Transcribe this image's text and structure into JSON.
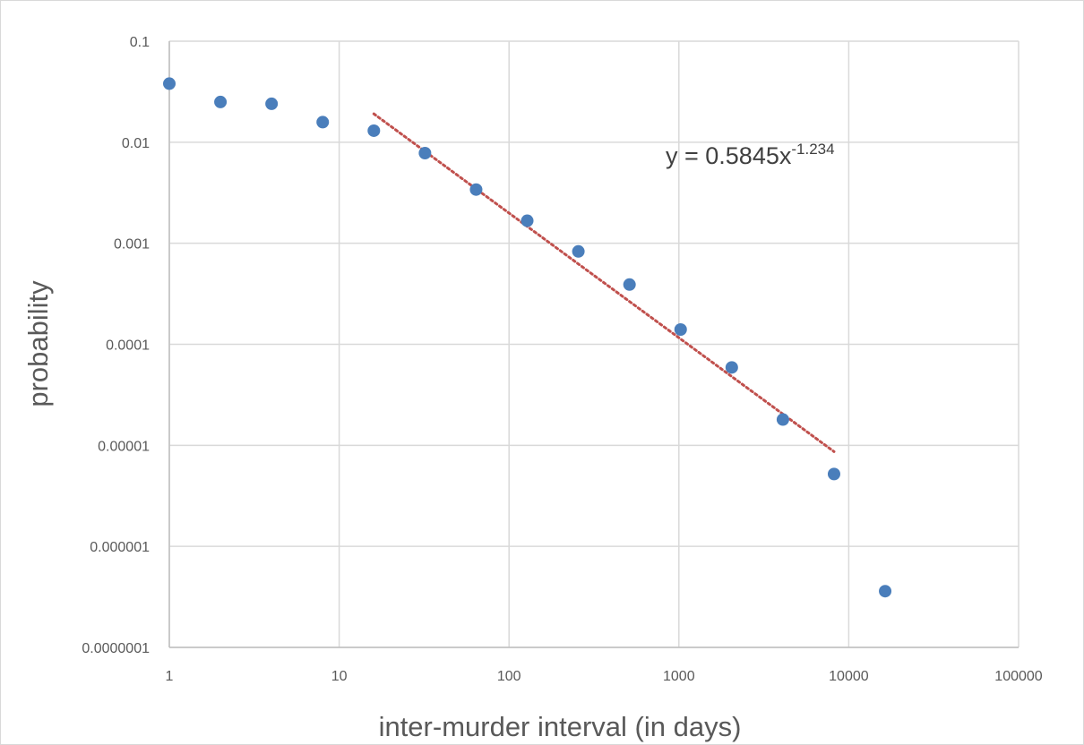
{
  "chart_data": {
    "type": "scatter",
    "title": "",
    "xlabel": "inter-murder interval (in days)",
    "ylabel": "probability",
    "x_scale": "log10",
    "y_scale": "log10",
    "xlim": [
      1,
      100000
    ],
    "ylim": [
      1e-07,
      0.1
    ],
    "x_ticks": [
      "1",
      "10",
      "100",
      "1000",
      "10000",
      "100000"
    ],
    "y_ticks": [
      "0.0000001",
      "0.000001",
      "0.00001",
      "0.0001",
      "0.001",
      "0.01",
      "0.1"
    ],
    "grid": true,
    "legend": "none",
    "series": [
      {
        "color": "#4a7ebb",
        "points": [
          {
            "x": 1,
            "y": 0.038
          },
          {
            "x": 2,
            "y": 0.025
          },
          {
            "x": 4,
            "y": 0.024
          },
          {
            "x": 8,
            "y": 0.0158
          },
          {
            "x": 16,
            "y": 0.013
          },
          {
            "x": 32,
            "y": 0.0078
          },
          {
            "x": 64,
            "y": 0.0034
          },
          {
            "x": 128,
            "y": 0.00167
          },
          {
            "x": 256,
            "y": 0.00083
          },
          {
            "x": 512,
            "y": 0.00039
          },
          {
            "x": 1024,
            "y": 0.00014
          },
          {
            "x": 2048,
            "y": 5.9e-05
          },
          {
            "x": 4096,
            "y": 1.8e-05
          },
          {
            "x": 8192,
            "y": 5.2e-06
          },
          {
            "x": 16384,
            "y": 3.6e-07
          }
        ]
      }
    ],
    "trendline": {
      "type": "power",
      "a": 0.5845,
      "b": -1.234,
      "x_range": [
        16,
        8192
      ],
      "color": "#c0504d",
      "style": "dotted",
      "equation": {
        "prefix": "y = 0.5845x",
        "exponent": "-1.234"
      }
    }
  }
}
